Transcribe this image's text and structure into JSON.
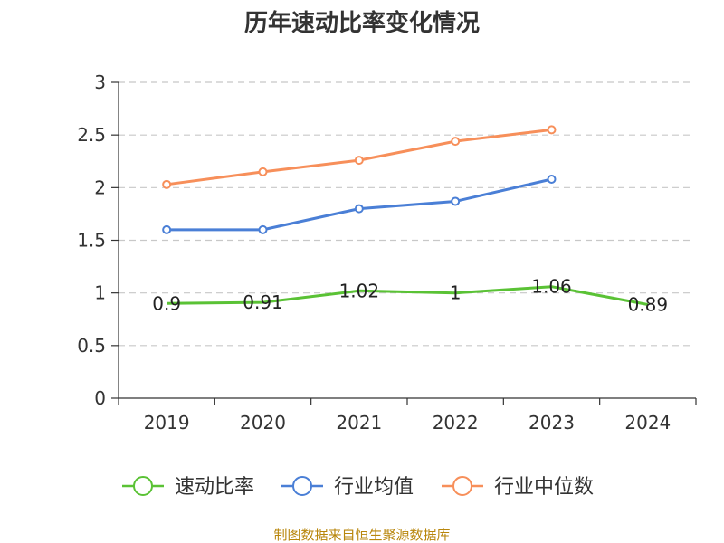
{
  "chart_data": {
    "type": "line",
    "title": "历年速动比率变化情况",
    "categories": [
      "2019",
      "2020",
      "2021",
      "2022",
      "2023",
      "2024"
    ],
    "ylim": [
      0,
      3
    ],
    "yticks": [
      "0",
      "0.5",
      "1",
      "1.5",
      "2",
      "2.5",
      "3"
    ],
    "grid": true,
    "legend_position": "bottom",
    "series": [
      {
        "name": "速动比率",
        "color": "#5ac235",
        "values": [
          0.9,
          0.91,
          1.02,
          1.0,
          1.06,
          0.89
        ],
        "labels": [
          "0.9",
          "0.91",
          "1.02",
          "1",
          "1.06",
          "0.89"
        ],
        "show_markers": false
      },
      {
        "name": "行业均值",
        "color": "#4a7fd6",
        "values": [
          1.6,
          1.6,
          1.8,
          1.87,
          2.08,
          null
        ],
        "show_markers": true
      },
      {
        "name": "行业中位数",
        "color": "#f78f5a",
        "values": [
          2.03,
          2.15,
          2.26,
          2.44,
          2.55,
          null
        ],
        "show_markers": true
      }
    ]
  },
  "source": "制图数据来自恒生聚源数据库"
}
